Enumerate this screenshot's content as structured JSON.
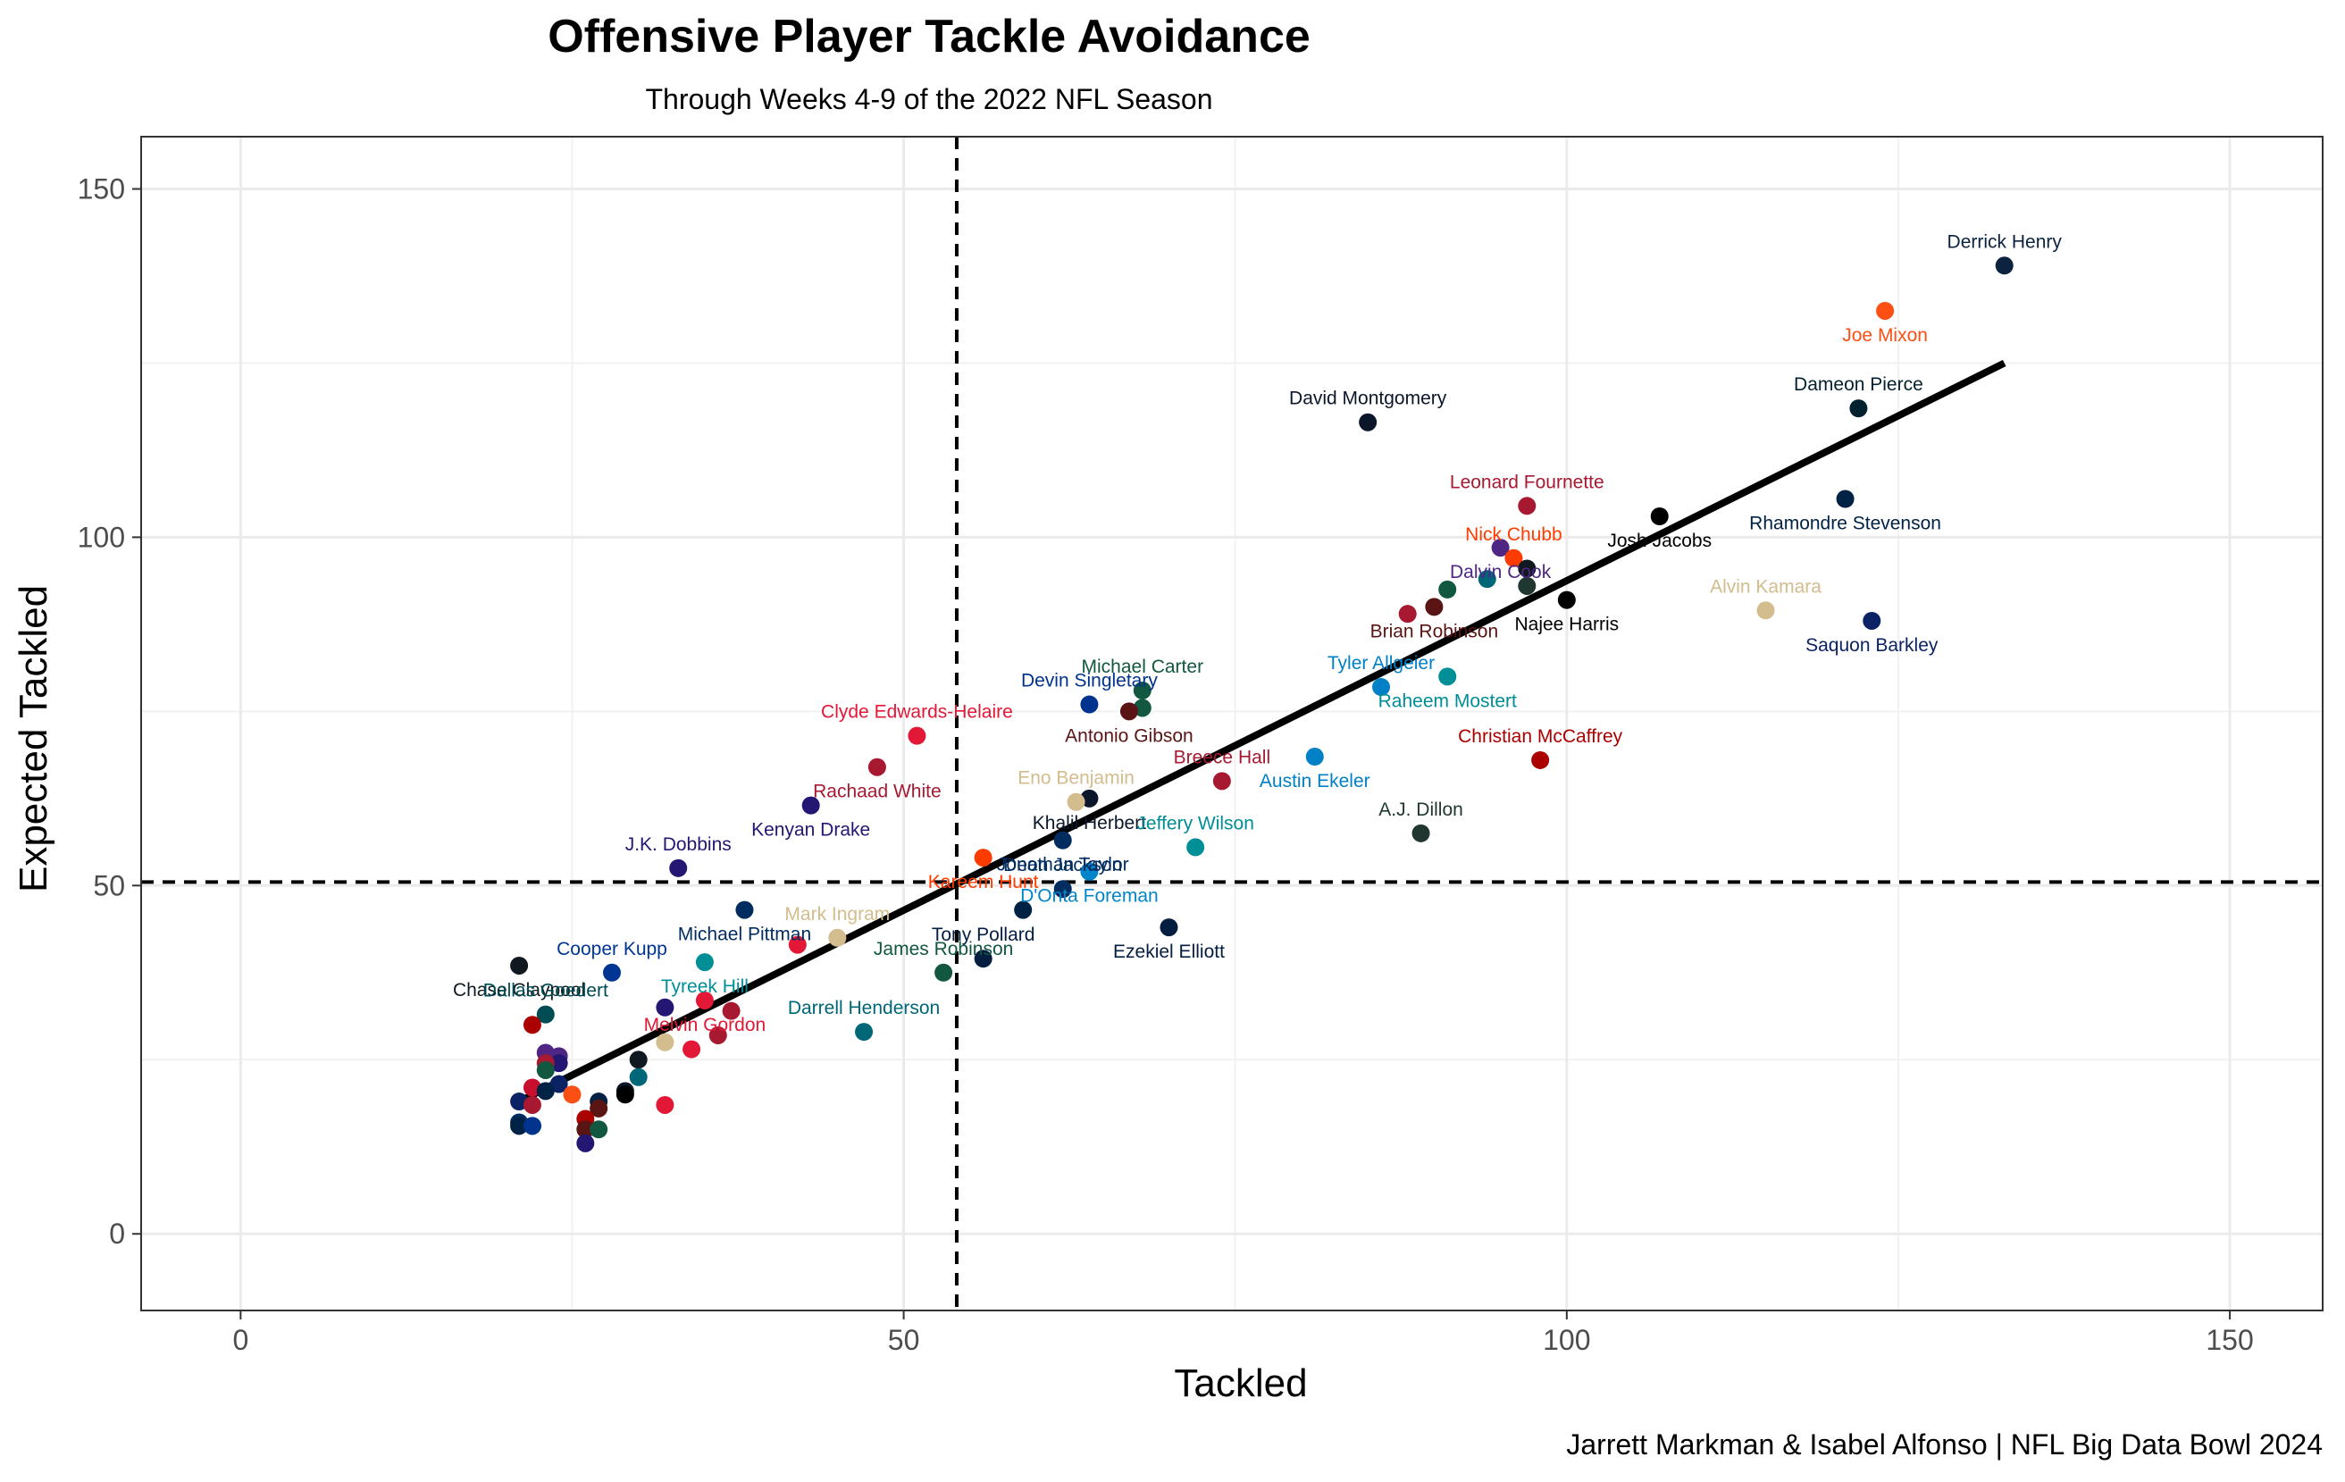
{
  "chart_data": {
    "type": "scatter",
    "title": "Offensive Player Tackle Avoidance",
    "subtitle": "Through Weeks 4-9 of the 2022 NFL Season",
    "xlabel": "Tackled",
    "ylabel": "Expected Tackled",
    "caption": "Jarrett Markman & Isabel Alfonso | NFL Big Data Bowl 2024",
    "xlim": [
      -7.5,
      157
    ],
    "ylim": [
      -11,
      157.5
    ],
    "x_ticks": [
      0,
      50,
      100,
      150
    ],
    "y_ticks": [
      0,
      50,
      100,
      150
    ],
    "grid": true,
    "reference_lines": {
      "vertical_x": 54,
      "horizontal_y": 50.5,
      "style": "dashed"
    },
    "trend_line": {
      "x": [
        21,
        133
      ],
      "y": [
        19,
        125
      ]
    },
    "points": [
      {
        "label": "Derrick Henry",
        "x": 133,
        "y": 139,
        "color": "#0C2340"
      },
      {
        "label": "Joe Mixon",
        "x": 124,
        "y": 132.5,
        "color": "#FB4F14"
      },
      {
        "label": "Dameon Pierce",
        "x": 122,
        "y": 118.5,
        "color": "#03202F"
      },
      {
        "label": "Rhamondre Stevenson",
        "x": 121,
        "y": 105.5,
        "color": "#002244"
      },
      {
        "label": "David Montgomery",
        "x": 85,
        "y": 116.5,
        "color": "#0B162A"
      },
      {
        "label": "Josh Jacobs",
        "x": 107,
        "y": 103,
        "color": "#000000"
      },
      {
        "label": "Leonard Fournette",
        "x": 97,
        "y": 104.5,
        "color": "#A71930"
      },
      {
        "label": "Dalvin Cook",
        "x": 95,
        "y": 98.5,
        "color": "#4F2683"
      },
      {
        "label": "Nick Chubb",
        "x": 96,
        "y": 97,
        "color": "#FF3C00"
      },
      {
        "label": "",
        "x": 97,
        "y": 95.5,
        "color": "#101820"
      },
      {
        "label": "",
        "x": 94,
        "y": 94,
        "color": "#006778"
      },
      {
        "label": "",
        "x": 91,
        "y": 92.5,
        "color": "#125740"
      },
      {
        "label": "",
        "x": 97,
        "y": 93,
        "color": "#203731"
      },
      {
        "label": "Brian Robinson",
        "x": 90,
        "y": 90,
        "color": "#5A1414"
      },
      {
        "label": "",
        "x": 88,
        "y": 89,
        "color": "#A71930"
      },
      {
        "label": "Najee Harris",
        "x": 100,
        "y": 91,
        "color": "#000000"
      },
      {
        "label": "Alvin Kamara",
        "x": 115,
        "y": 89.5,
        "color": "#D3BC8D"
      },
      {
        "label": "Saquon Barkley",
        "x": 123,
        "y": 88,
        "color": "#0B2265"
      },
      {
        "label": "Tyler Allgeier",
        "x": 86,
        "y": 78.5,
        "color": "#0080C6"
      },
      {
        "label": "Raheem Mostert",
        "x": 91,
        "y": 80,
        "color": "#008E97"
      },
      {
        "label": "Michael Carter",
        "x": 68,
        "y": 78,
        "color": "#125740"
      },
      {
        "label": "",
        "x": 68,
        "y": 75.5,
        "color": "#125740"
      },
      {
        "label": "Devin Singletary",
        "x": 64,
        "y": 76,
        "color": "#00338D"
      },
      {
        "label": "Antonio Gibson",
        "x": 67,
        "y": 75,
        "color": "#5A1414"
      },
      {
        "label": "Clyde Edwards-Helaire",
        "x": 51,
        "y": 71.5,
        "color": "#E31837"
      },
      {
        "label": "Rachaad White",
        "x": 48,
        "y": 67,
        "color": "#A71930"
      },
      {
        "label": "Breece Hall",
        "x": 74,
        "y": 65,
        "color": "#A71930"
      },
      {
        "label": "Austin Ekeler",
        "x": 81,
        "y": 68.5,
        "color": "#0080C6"
      },
      {
        "label": "Christian McCaffrey",
        "x": 98,
        "y": 68,
        "color": "#AA0000"
      },
      {
        "label": "Khalil Herbert",
        "x": 64,
        "y": 62.5,
        "color": "#0B162A"
      },
      {
        "label": "Eno Benjamin",
        "x": 63,
        "y": 62,
        "color": "#D3BC8D"
      },
      {
        "label": "Kenyan Drake",
        "x": 43,
        "y": 61.5,
        "color": "#241773"
      },
      {
        "label": "A.J. Dillon",
        "x": 89,
        "y": 57.5,
        "color": "#203731"
      },
      {
        "label": "Jonathan Taylor",
        "x": 62,
        "y": 56.5,
        "color": "#002C5F"
      },
      {
        "label": "Jeffery Wilson",
        "x": 72,
        "y": 55.5,
        "color": "#008E97"
      },
      {
        "label": "Kareem Hunt",
        "x": 56,
        "y": 54,
        "color": "#FF3C00"
      },
      {
        "label": "J.K. Dobbins",
        "x": 33,
        "y": 52.5,
        "color": "#241773"
      },
      {
        "label": "D'Onta Foreman",
        "x": 64,
        "y": 52,
        "color": "#0085CA"
      },
      {
        "label": "Deon Jackson",
        "x": 62,
        "y": 49.5,
        "color": "#002C5F"
      },
      {
        "label": "Michael Pittman",
        "x": 38,
        "y": 46.5,
        "color": "#002C5F"
      },
      {
        "label": "",
        "x": 59,
        "y": 46.5,
        "color": "#002244"
      },
      {
        "label": "Ezekiel Elliott",
        "x": 70,
        "y": 44,
        "color": "#041E42"
      },
      {
        "label": "Mark Ingram",
        "x": 45,
        "y": 42.5,
        "color": "#D3BC8D"
      },
      {
        "label": "",
        "x": 42,
        "y": 41.5,
        "color": "#E31837"
      },
      {
        "label": "Tony Pollard",
        "x": 56,
        "y": 39.5,
        "color": "#041E42"
      },
      {
        "label": "Chase Claypool",
        "x": 21,
        "y": 38.5,
        "color": "#101820"
      },
      {
        "label": "Cooper Kupp",
        "x": 28,
        "y": 37.5,
        "color": "#003594"
      },
      {
        "label": "Tyreek Hill",
        "x": 35,
        "y": 39,
        "color": "#008E97"
      },
      {
        "label": "James Robinson",
        "x": 53,
        "y": 37.5,
        "color": "#125740"
      },
      {
        "label": "Melvin Gordon",
        "x": 35,
        "y": 33.5,
        "color": "#E31837"
      },
      {
        "label": "",
        "x": 32,
        "y": 32.5,
        "color": "#241773"
      },
      {
        "label": "",
        "x": 37,
        "y": 32,
        "color": "#A71930"
      },
      {
        "label": "Dallas Goedert",
        "x": 23,
        "y": 31.5,
        "color": "#004C54"
      },
      {
        "label": "",
        "x": 22,
        "y": 30,
        "color": "#AA0000"
      },
      {
        "label": "Darrell Henderson",
        "x": 47,
        "y": 29,
        "color": "#006778"
      },
      {
        "label": "",
        "x": 36,
        "y": 28.5,
        "color": "#A71930"
      },
      {
        "label": "",
        "x": 32,
        "y": 27.5,
        "color": "#D3BC8D"
      },
      {
        "label": "",
        "x": 34,
        "y": 26.5,
        "color": "#E31837"
      },
      {
        "label": "",
        "x": 23,
        "y": 26,
        "color": "#4F2683"
      },
      {
        "label": "",
        "x": 24,
        "y": 25.5,
        "color": "#4F2683"
      },
      {
        "label": "",
        "x": 30,
        "y": 25,
        "color": "#101820"
      },
      {
        "label": "",
        "x": 24,
        "y": 24.5,
        "color": "#241773"
      },
      {
        "label": "",
        "x": 23,
        "y": 24.5,
        "color": "#A71930"
      },
      {
        "label": "",
        "x": 23,
        "y": 23.5,
        "color": "#125740"
      },
      {
        "label": "",
        "x": 30,
        "y": 22.5,
        "color": "#006778"
      },
      {
        "label": "",
        "x": 24,
        "y": 21.5,
        "color": "#0B2265"
      },
      {
        "label": "",
        "x": 22,
        "y": 21,
        "color": "#C8102E"
      },
      {
        "label": "",
        "x": 23,
        "y": 20.5,
        "color": "#002244"
      },
      {
        "label": "",
        "x": 29,
        "y": 20.5,
        "color": "#0B162A"
      },
      {
        "label": "",
        "x": 25,
        "y": 20,
        "color": "#FB4F14"
      },
      {
        "label": "",
        "x": 29,
        "y": 20,
        "color": "#000000"
      },
      {
        "label": "",
        "x": 27,
        "y": 19,
        "color": "#002244"
      },
      {
        "label": "",
        "x": 21,
        "y": 19,
        "color": "#0B2265"
      },
      {
        "label": "",
        "x": 22,
        "y": 18.5,
        "color": "#A71930"
      },
      {
        "label": "",
        "x": 32,
        "y": 18.5,
        "color": "#E31837"
      },
      {
        "label": "",
        "x": 27,
        "y": 18,
        "color": "#5A1414"
      },
      {
        "label": "",
        "x": 26,
        "y": 16.5,
        "color": "#AA0000"
      },
      {
        "label": "",
        "x": 21,
        "y": 16,
        "color": "#002C5F"
      },
      {
        "label": "",
        "x": 22,
        "y": 15.5,
        "color": "#006778"
      },
      {
        "label": "",
        "x": 21,
        "y": 15.5,
        "color": "#002244"
      },
      {
        "label": "",
        "x": 22,
        "y": 15.5,
        "color": "#00338D"
      },
      {
        "label": "",
        "x": 26,
        "y": 15,
        "color": "#5A1414"
      },
      {
        "label": "",
        "x": 27,
        "y": 15,
        "color": "#125740"
      },
      {
        "label": "",
        "x": 26,
        "y": 13,
        "color": "#241773"
      }
    ]
  }
}
